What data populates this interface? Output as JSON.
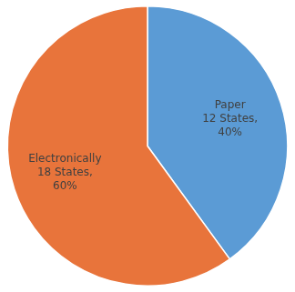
{
  "chart_data": {
    "type": "pie",
    "categories": [
      "Paper\n12 States,\n40%",
      "Electronically\n18 States,\n60%"
    ],
    "values": [
      40,
      60
    ],
    "colors": [
      "#5B9BD5",
      "#E8743B"
    ]
  }
}
